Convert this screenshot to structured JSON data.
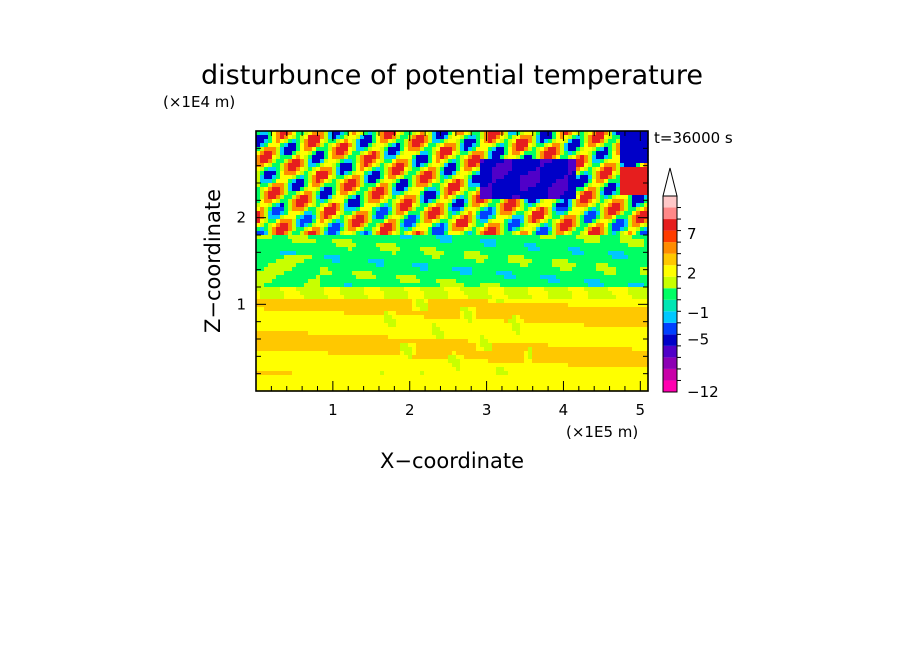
{
  "chart_data": {
    "type": "heatmap",
    "title": "disturbunce of potential temperature",
    "xlabel": "X−coordinate",
    "ylabel": "Z−coordinate",
    "x_unit": "(×1E5 m)",
    "y_unit": "(×1E4 m)",
    "time_label": "t=36000 s",
    "xlim": [
      0,
      5.1
    ],
    "ylim": [
      0,
      3.0
    ],
    "x_ticks": [
      1,
      2,
      3,
      4,
      5
    ],
    "x_tick_labels": [
      "1",
      "2",
      "3",
      "4",
      "5"
    ],
    "y_ticks": [
      1,
      2
    ],
    "y_tick_labels": [
      "1",
      "2"
    ],
    "colorbar": {
      "levels": [
        -12,
        -10,
        -8,
        -6,
        -5,
        -3,
        -1,
        0,
        1,
        2,
        3,
        5,
        7,
        8,
        10
      ],
      "labeled_levels": [
        "−12",
        "−5",
        "−1",
        "2",
        "7"
      ],
      "labeled_values": [
        -12,
        -5,
        -1,
        2,
        7
      ],
      "colors": [
        "#ff00b0",
        "#c800a8",
        "#8c00b4",
        "#5000c8",
        "#0000c8",
        "#0040ff",
        "#00c8ff",
        "#00e6b4",
        "#00ff64",
        "#c8ff00",
        "#ffff00",
        "#ffc800",
        "#ff8c00",
        "#ff3c00",
        "#e61e1e",
        "#ff8888",
        "#ffc8c8"
      ],
      "extend_max": true
    },
    "field_description_rows": [
      {
        "z_range": [
          0.0,
          0.15
        ],
        "dominant": "yellow"
      },
      {
        "z_range": [
          0.15,
          0.95
        ],
        "dominant": "orange/yellow bands"
      },
      {
        "z_range": [
          0.95,
          1.7
        ],
        "dominant": "green"
      },
      {
        "z_range": [
          1.7,
          3.0
        ],
        "dominant": "alternating wave pattern red/blue"
      }
    ]
  }
}
